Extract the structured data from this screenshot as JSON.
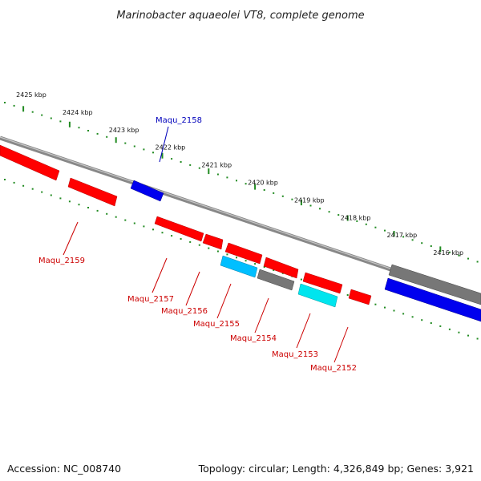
{
  "title": "Marinobacter aquaeolei VT8, complete genome",
  "footer": {
    "accession": "Accession: NC_008740",
    "topology": "Topology: circular; Length: 4,326,849 bp; Genes: 3,921"
  },
  "colors": {
    "forward": "#ff0000",
    "reverse_blue": "#0000ee",
    "other": "#777777",
    "cyan": "#00e5ee",
    "ticks": "#228b22",
    "backbone": "#888888",
    "label_red": "#cc0000",
    "label_blue": "#0000bb"
  },
  "scale_labels": [
    "2425 kbp",
    "2424 kbp",
    "2423 kbp",
    "2422 kbp",
    "2421 kbp",
    "2420 kbp",
    "2419 kbp",
    "2418 kbp",
    "2417 kbp",
    "2416 kbp"
  ],
  "gene_labels": [
    {
      "name": "Maqu_2158",
      "color": "label_blue"
    },
    {
      "name": "Maqu_2159",
      "color": "label_red"
    },
    {
      "name": "Maqu_2157",
      "color": "label_red"
    },
    {
      "name": "Maqu_2156",
      "color": "label_red"
    },
    {
      "name": "Maqu_2155",
      "color": "label_red"
    },
    {
      "name": "Maqu_2154",
      "color": "label_red"
    },
    {
      "name": "Maqu_2153",
      "color": "label_red"
    },
    {
      "name": "Maqu_2152",
      "color": "label_red"
    }
  ]
}
